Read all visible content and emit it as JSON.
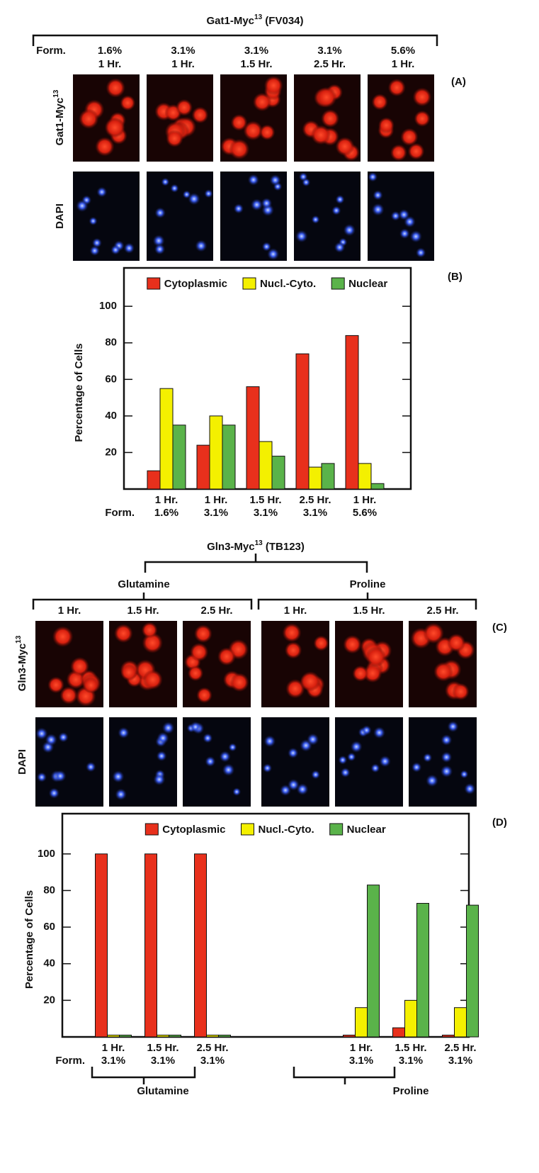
{
  "top": {
    "title": {
      "main": "Gat1-Myc",
      "sup": "13",
      "rest": " (FV034)"
    },
    "row_label": "Form.",
    "conditions": [
      [
        "1.6%",
        "1 Hr."
      ],
      [
        "3.1%",
        "1 Hr."
      ],
      [
        "3.1%",
        "1.5 Hr."
      ],
      [
        "3.1%",
        "2.5 Hr."
      ],
      [
        "5.6%",
        "1 Hr."
      ]
    ],
    "panel": "(A)",
    "image_rows": [
      {
        "main": "Gat1-Myc",
        "sup": "13"
      },
      {
        "main": "DAPI"
      }
    ]
  },
  "bottom": {
    "title": {
      "main": "Gln3-Myc",
      "sup": "13",
      "rest": " (TB123)"
    },
    "groups": [
      {
        "name": "Glutamine",
        "times": [
          "1 Hr.",
          "1.5 Hr.",
          "2.5 Hr."
        ]
      },
      {
        "name": "Proline",
        "times": [
          "1 Hr.",
          "1.5 Hr.",
          "2.5 Hr."
        ]
      }
    ],
    "panel": "(C)",
    "image_rows": [
      {
        "main": "Gln3-Myc",
        "sup": "13"
      },
      {
        "main": "DAPI"
      }
    ]
  },
  "chart_data": [
    {
      "type": "bar",
      "panel": "(B)",
      "ylabel": "Percentage of Cells",
      "x_row_label": "Form.",
      "categories": [
        [
          "1 Hr.",
          "1.6%"
        ],
        [
          "1 Hr.",
          "3.1%"
        ],
        [
          "1.5 Hr.",
          "3.1%"
        ],
        [
          "2.5 Hr.",
          "3.1%"
        ],
        [
          "1 Hr.",
          "5.6%"
        ]
      ],
      "series": [
        {
          "name": "Cytoplasmic",
          "color": "#e8301c",
          "values": [
            10,
            24,
            56,
            74,
            84
          ]
        },
        {
          "name": "Nucl.-Cyto.",
          "color": "#f4f000",
          "values": [
            55,
            40,
            26,
            12,
            14
          ]
        },
        {
          "name": "Nuclear",
          "color": "#5ab34a",
          "values": [
            35,
            35,
            18,
            14,
            3
          ]
        }
      ],
      "ylim": [
        0,
        121
      ],
      "yticks": [
        20,
        40,
        60,
        80,
        100
      ]
    },
    {
      "type": "bar",
      "panel": "(D)",
      "ylabel": "Percentage of Cells",
      "x_row_label": "Form.",
      "categories": [
        [
          "1 Hr.",
          "3.1%"
        ],
        [
          "1.5 Hr.",
          "3.1%"
        ],
        [
          "2.5 Hr.",
          "3.1%"
        ],
        [
          "1 Hr.",
          "3.1%"
        ],
        [
          "1.5 Hr.",
          "3.1%"
        ],
        [
          "2.5 Hr.",
          "3.1%"
        ]
      ],
      "groups": [
        "Glutamine",
        "Proline"
      ],
      "series": [
        {
          "name": "Cytoplasmic",
          "color": "#e8301c",
          "values": [
            100,
            100,
            100,
            1,
            5,
            1
          ]
        },
        {
          "name": "Nucl.-Cyto.",
          "color": "#f4f000",
          "values": [
            1,
            1,
            1,
            16,
            20,
            16
          ]
        },
        {
          "name": "Nuclear",
          "color": "#5ab34a",
          "values": [
            1,
            1,
            1,
            83,
            73,
            72
          ]
        }
      ],
      "ylim": [
        0,
        122
      ],
      "yticks": [
        20,
        40,
        60,
        80,
        100
      ]
    }
  ]
}
